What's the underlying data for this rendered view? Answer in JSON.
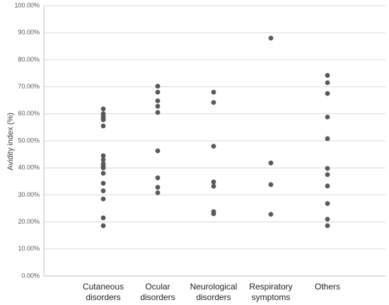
{
  "chart_data": {
    "type": "scatter",
    "title": "",
    "xlabel": "",
    "ylabel": "Avidity index (%)",
    "ylim": [
      0,
      100
    ],
    "ytick_labels": [
      "0.00%",
      "10.00%",
      "20.00%",
      "30.00%",
      "40.00%",
      "50.00%",
      "60.00%",
      "70.00%",
      "80.00%",
      "90.00%",
      "100.00%"
    ],
    "categories": [
      [
        "Cutaneous",
        "disorders"
      ],
      [
        "Ocular",
        "disorders"
      ],
      [
        "Neurological",
        "disorders"
      ],
      [
        "Respiratory",
        "symptoms"
      ],
      [
        "Others"
      ]
    ],
    "series": [
      {
        "values": [
          [
            61.8,
            60.0,
            59.2,
            58.5,
            57.8,
            55.5,
            44.5,
            43.0,
            41.5,
            40.5,
            40.0,
            38.0,
            34.3,
            31.5,
            28.5,
            21.5,
            18.6
          ],
          [
            70.2,
            68.0,
            64.8,
            62.8,
            60.5,
            46.3,
            36.3,
            32.8,
            30.8
          ],
          [
            68.0,
            64.2,
            48.0,
            34.8,
            33.2,
            23.8,
            23.0
          ],
          [
            88.0,
            41.8,
            33.8,
            22.8
          ],
          [
            74.2,
            71.5,
            67.5,
            58.8,
            50.8,
            39.8,
            37.5,
            33.3,
            26.8,
            21.0,
            18.6
          ]
        ],
        "color": "#595959"
      }
    ],
    "grid": true,
    "legend": "none"
  }
}
